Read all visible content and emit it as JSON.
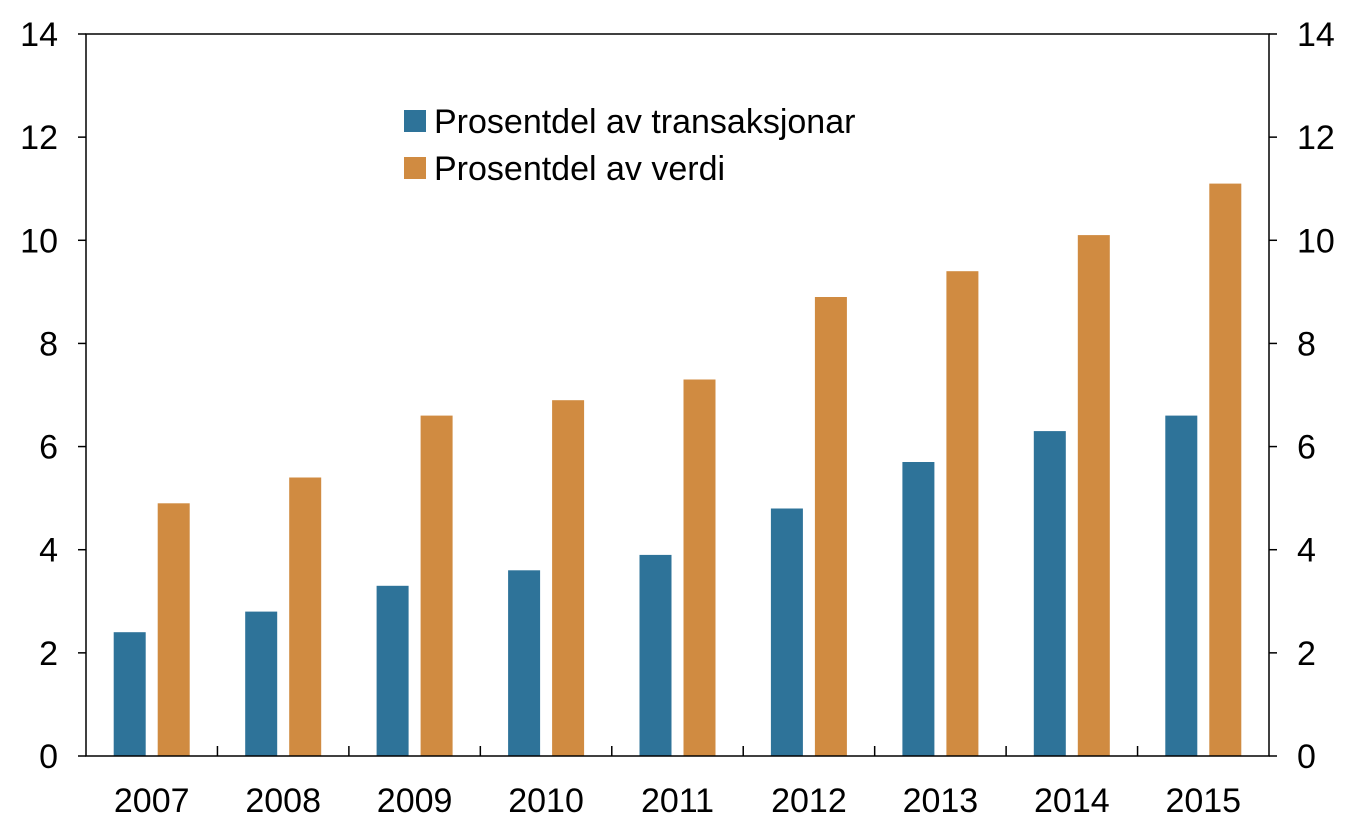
{
  "chart_data": {
    "type": "bar",
    "categories": [
      "2007",
      "2008",
      "2009",
      "2010",
      "2011",
      "2012",
      "2013",
      "2014",
      "2015"
    ],
    "series": [
      {
        "name": "Prosentdel av transaksjonar",
        "color": "#2e7399",
        "values": [
          2.4,
          2.8,
          3.3,
          3.6,
          3.9,
          4.8,
          5.7,
          6.3,
          6.6
        ]
      },
      {
        "name": "Prosentdel av verdi",
        "color": "#d08b41",
        "values": [
          4.9,
          5.4,
          6.6,
          6.9,
          7.3,
          8.9,
          9.4,
          10.1,
          11.1
        ]
      }
    ],
    "ylim": [
      0,
      14
    ],
    "yticks": [
      "0",
      "2",
      "4",
      "6",
      "8",
      "10",
      "12",
      "14"
    ],
    "title": "",
    "xlabel": "",
    "ylabel": "",
    "secondary_axis": "mirrored",
    "grid": false,
    "legend_position": "top-center"
  }
}
